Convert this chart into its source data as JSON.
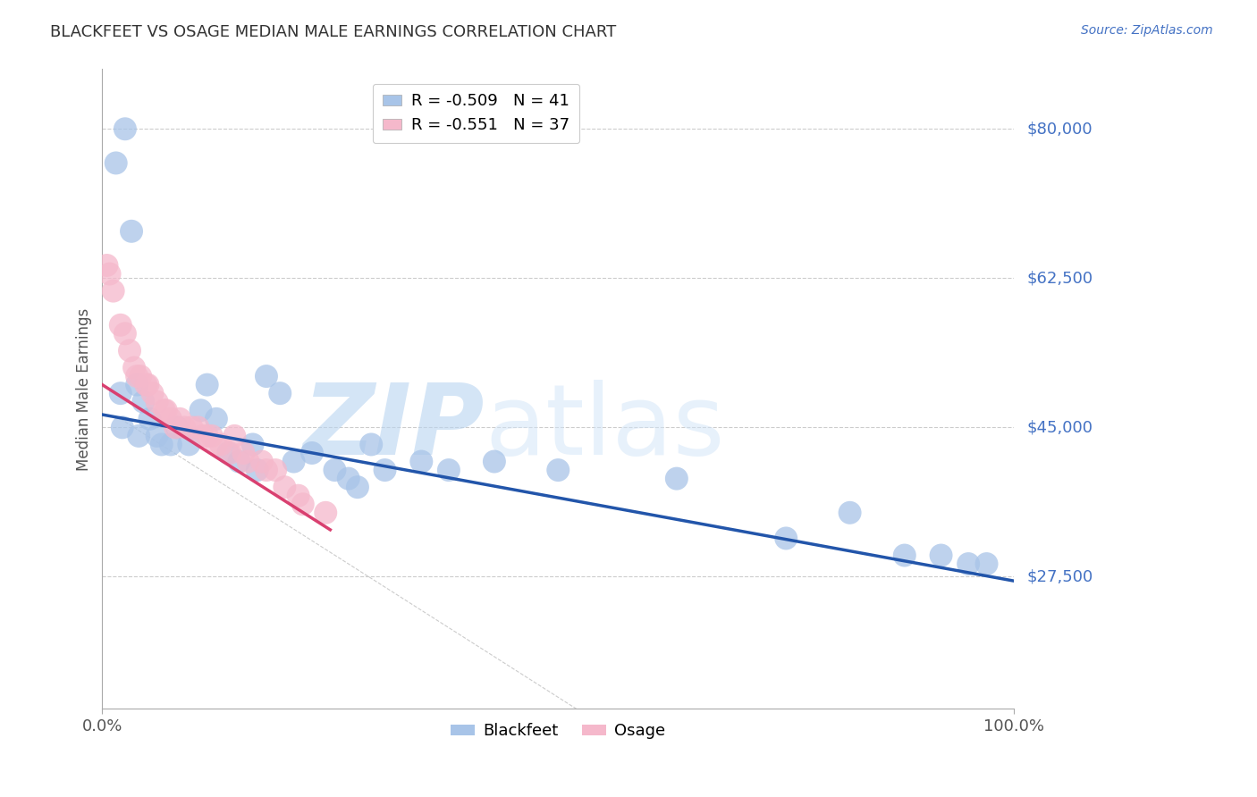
{
  "title": "BLACKFEET VS OSAGE MEDIAN MALE EARNINGS CORRELATION CHART",
  "source": "Source: ZipAtlas.com",
  "ylabel": "Median Male Earnings",
  "xlim": [
    0.0,
    100.0
  ],
  "ylim": [
    12000,
    87000
  ],
  "yticks": [
    27500,
    45000,
    62500,
    80000
  ],
  "ytick_labels": [
    "$27,500",
    "$45,000",
    "$62,500",
    "$80,000"
  ],
  "xtick_labels": [
    "0.0%",
    "100.0%"
  ],
  "watermark_zip": "ZIP",
  "watermark_atlas": "atlas",
  "blackfeet_color": "#a8c4e8",
  "osage_color": "#f5b8cb",
  "blackfeet_line_color": "#2255aa",
  "osage_line_color": "#d94070",
  "label_color": "#4472c4",
  "grid_color": "#cccccc",
  "legend_r_blackfeet": "R = -0.509",
  "legend_n_blackfeet": "N = 41",
  "legend_r_osage": "R = -0.551",
  "legend_n_osage": "N = 37",
  "blackfeet_x": [
    1.5,
    2.5,
    3.2,
    2.0,
    3.8,
    4.5,
    5.2,
    6.0,
    7.5,
    8.2,
    9.5,
    10.8,
    11.5,
    12.5,
    13.8,
    15.0,
    16.5,
    18.0,
    19.5,
    21.0,
    23.0,
    25.5,
    27.0,
    29.5,
    31.0,
    35.0,
    38.0,
    43.0,
    50.0,
    63.0,
    75.0,
    82.0,
    88.0,
    92.0,
    95.0,
    97.0,
    2.2,
    4.0,
    6.5,
    17.0,
    28.0
  ],
  "blackfeet_y": [
    76000,
    80000,
    68000,
    49000,
    50000,
    48000,
    46000,
    44000,
    43000,
    45000,
    43000,
    47000,
    50000,
    46000,
    42000,
    41000,
    43000,
    51000,
    49000,
    41000,
    42000,
    40000,
    39000,
    43000,
    40000,
    41000,
    40000,
    41000,
    40000,
    39000,
    32000,
    35000,
    30000,
    30000,
    29000,
    29000,
    45000,
    44000,
    43000,
    40000,
    38000
  ],
  "osage_x": [
    0.5,
    0.8,
    1.2,
    2.0,
    2.5,
    3.0,
    3.5,
    4.2,
    5.0,
    6.0,
    7.0,
    8.5,
    9.0,
    10.5,
    11.5,
    12.5,
    14.0,
    16.0,
    18.0,
    20.0,
    22.0,
    24.5,
    14.5,
    8.0,
    4.8,
    6.8,
    9.8,
    13.0,
    17.5,
    21.5,
    5.5,
    11.0,
    15.5,
    19.0,
    3.8,
    7.5,
    12.0
  ],
  "osage_y": [
    64000,
    63000,
    61000,
    57000,
    56000,
    54000,
    52000,
    51000,
    50000,
    48000,
    47000,
    46000,
    45000,
    45000,
    44000,
    43000,
    42000,
    41000,
    40000,
    38000,
    36000,
    35000,
    44000,
    45000,
    50000,
    47000,
    45000,
    43000,
    41000,
    37000,
    49000,
    44000,
    42000,
    40000,
    51000,
    46000,
    44000
  ],
  "bf_line_x0": 0,
  "bf_line_x1": 100,
  "bf_line_y0": 46500,
  "bf_line_y1": 27000,
  "os_line_x0": 0,
  "os_line_x1": 25,
  "os_line_y0": 50000,
  "os_line_y1": 33000,
  "diag_x0": 2,
  "diag_x1": 52,
  "diag_y0": 46000,
  "diag_y1": 12000
}
